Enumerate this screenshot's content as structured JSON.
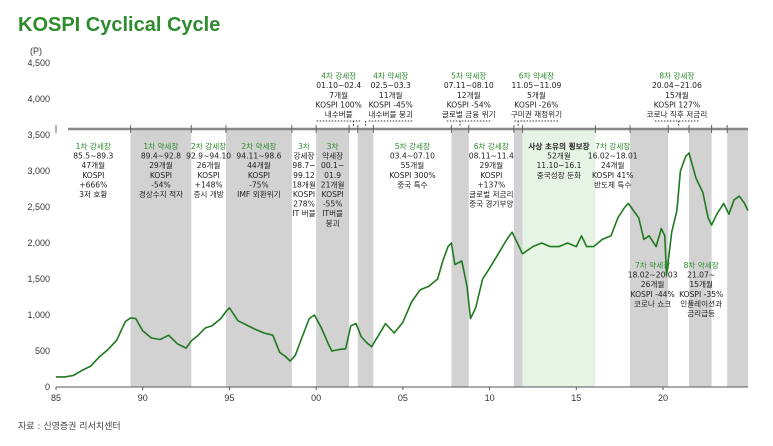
{
  "title": "KOSPI Cyclical Cycle",
  "source": "자료 : 신영증권 리서치센터",
  "chart_data": {
    "type": "line",
    "ylabel": "(P)",
    "ylim": [
      0,
      4500
    ],
    "xlim": [
      1985,
      2024.9
    ],
    "y_ticks": [
      "0",
      "500",
      "1,000",
      "1,500",
      "2,000",
      "2,500",
      "3,000",
      "3,500",
      "4,000",
      "4,500"
    ],
    "x_ticks": [
      "85",
      "90",
      "95",
      "00",
      "05",
      "10",
      "15",
      "20"
    ],
    "colors": {
      "line": "#1f7a1f",
      "shade": "#d2d2d2",
      "shade_highlight": "#e6f4e6",
      "cycle_bar": "#888888",
      "title": "#2e8b2e"
    },
    "series": [
      {
        "x": [
          1985.0,
          1985.5,
          1986.0,
          1986.5,
          1987.0,
          1987.5,
          1988.0,
          1988.5,
          1989.0,
          1989.3,
          1989.6,
          1990.0,
          1990.5,
          1991.0,
          1991.5,
          1992.0,
          1992.5,
          1992.8,
          1993.2,
          1993.6,
          1994.0,
          1994.5,
          1994.8,
          1995.0,
          1995.5,
          1996.0,
          1996.5,
          1997.0,
          1997.5,
          1997.9,
          1998.2,
          1998.5,
          1998.8,
          1999.2,
          1999.6,
          1999.9,
          2000.3,
          2000.7,
          2000.9,
          2001.3,
          2001.7,
          2002.0,
          2002.3,
          2002.6,
          2002.9,
          2003.2,
          2003.6,
          2004.0,
          2004.5,
          2005.0,
          2005.5,
          2006.0,
          2006.5,
          2007.0,
          2007.3,
          2007.6,
          2007.8,
          2008.0,
          2008.4,
          2008.7,
          2008.9,
          2009.2,
          2009.6,
          2010.0,
          2010.5,
          2011.0,
          2011.3,
          2011.6,
          2011.9,
          2012.5,
          2013.0,
          2013.5,
          2014.0,
          2014.5,
          2015.0,
          2015.3,
          2015.6,
          2016.0,
          2016.5,
          2017.0,
          2017.4,
          2017.8,
          2018.0,
          2018.3,
          2018.6,
          2018.9,
          2019.2,
          2019.6,
          2019.9,
          2020.1,
          2020.2,
          2020.5,
          2020.8,
          2021.0,
          2021.3,
          2021.5,
          2021.9,
          2022.3,
          2022.6,
          2022.8,
          2023.1,
          2023.5,
          2023.8,
          2024.1,
          2024.4,
          2024.7,
          2024.9
        ],
        "values": [
          140,
          140,
          160,
          230,
          290,
          420,
          520,
          650,
          910,
          960,
          950,
          780,
          680,
          660,
          720,
          600,
          540,
          640,
          720,
          820,
          850,
          950,
          1050,
          1100,
          920,
          860,
          800,
          750,
          720,
          480,
          430,
          360,
          440,
          700,
          950,
          1000,
          820,
          600,
          500,
          520,
          530,
          850,
          880,
          700,
          620,
          560,
          720,
          880,
          750,
          900,
          1180,
          1350,
          1400,
          1500,
          1750,
          1950,
          2000,
          1700,
          1750,
          1400,
          950,
          1100,
          1500,
          1650,
          1850,
          2050,
          2150,
          2000,
          1850,
          1950,
          2000,
          1950,
          1950,
          2000,
          1950,
          2100,
          1950,
          1950,
          2050,
          2100,
          2350,
          2500,
          2550,
          2450,
          2350,
          2050,
          2100,
          1950,
          2200,
          2100,
          1550,
          2150,
          2450,
          3000,
          3200,
          3250,
          2900,
          2700,
          2350,
          2250,
          2400,
          2550,
          2400,
          2600,
          2650,
          2550,
          2450
        ]
      }
    ],
    "cycles": [
      {
        "x0": 1985.0,
        "x1": 1989.3,
        "title": "1차 강세장",
        "lines": [
          "85.5~89.3",
          "47개월",
          "KOSPI",
          "+666%",
          "3저 호황"
        ],
        "shade": false,
        "title_style": "green",
        "pos": "inside"
      },
      {
        "x0": 1989.3,
        "x1": 1992.8,
        "title": "1차 약세장",
        "lines": [
          "89.4~92.8",
          "29개월",
          "KOSPI",
          "-54%",
          "경상수지 적자"
        ],
        "shade": true,
        "title_style": "green",
        "pos": "inside"
      },
      {
        "x0": 1992.8,
        "x1": 1994.8,
        "title": "2차 강세장",
        "lines": [
          "92.9~94.10",
          "26개월",
          "KOSPI",
          "+148%",
          "증시 개방"
        ],
        "shade": false,
        "title_style": "green",
        "pos": "inside"
      },
      {
        "x0": 1994.8,
        "x1": 1998.6,
        "title": "2차 약세장",
        "lines": [
          "94.11~98.6",
          "44개월",
          "KOSPI",
          "-75%",
          "IMF 외환위기"
        ],
        "shade": true,
        "title_style": "green",
        "pos": "inside"
      },
      {
        "x0": 1998.6,
        "x1": 2000.0,
        "title": "3차",
        "lines": [
          "강세장",
          "98.7~",
          "99.12",
          "18개월",
          "KOSPI",
          "278%",
          "IT 버블"
        ],
        "shade": false,
        "title_style": "green",
        "pos": "inside"
      },
      {
        "x0": 2000.0,
        "x1": 2001.9,
        "title": "3차",
        "lines": [
          "약세장",
          "00.1~",
          "01.9",
          "21개월",
          "KOSPI",
          "-55%",
          "IT버블",
          "붕괴"
        ],
        "shade": true,
        "title_style": "green",
        "pos": "inside"
      },
      {
        "x0": 2001.9,
        "x1": 2002.4,
        "title": "4차 강세장",
        "lines": [
          "01.10~02.4",
          "7개월",
          "KOSPI 100%",
          "내수버블"
        ],
        "shade": false,
        "title_style": "green",
        "pos": "above",
        "label_x": 2001.3
      },
      {
        "x0": 2002.4,
        "x1": 2003.3,
        "title": "4차 약세장",
        "lines": [
          "02.5~03.3",
          "11개월",
          "KOSPI -45%",
          "내수버블 붕괴"
        ],
        "shade": true,
        "title_style": "green",
        "pos": "above",
        "label_x": 2004.3
      },
      {
        "x0": 2003.3,
        "x1": 2007.8,
        "title": "5차 강세장",
        "lines": [
          "03.4~07.10",
          "55개월",
          "KOSPI 300%",
          "중국 특수"
        ],
        "shade": false,
        "title_style": "green",
        "pos": "inside"
      },
      {
        "x0": 2007.8,
        "x1": 2008.8,
        "title": "5차 약세장",
        "lines": [
          "07.11~08.10",
          "12개월",
          "KOSPI -54%",
          "글로벌 금융 위기"
        ],
        "shade": true,
        "title_style": "green",
        "pos": "above",
        "label_x": 2008.8
      },
      {
        "x0": 2008.8,
        "x1": 2011.4,
        "title": "6차 강세장",
        "lines": [
          "08.11~11.4",
          "29개월",
          "KOSPI",
          "+137%",
          "글로벌 저금리",
          "중국 경기부양"
        ],
        "shade": false,
        "title_style": "green",
        "pos": "inside"
      },
      {
        "x0": 2011.4,
        "x1": 2011.9,
        "title": "6차 약세장",
        "lines": [
          "11.05~11.09",
          "5개월",
          "KOSPI -26%",
          "구미권 재정위기"
        ],
        "shade": true,
        "title_style": "green",
        "pos": "above",
        "label_x": 2012.7
      },
      {
        "x0": 2011.9,
        "x1": 2016.1,
        "title": "사상 초유의 횡보장",
        "lines": [
          "52개월",
          "11.10~16.1",
          "중국성장 둔화"
        ],
        "shade": true,
        "highlight": true,
        "title_style": "dark",
        "pos": "inside"
      },
      {
        "x0": 2016.1,
        "x1": 2018.1,
        "title": "7차 강세장",
        "lines": [
          "16.02~18.01",
          "24개월",
          "KOSPI 41%",
          "반도체 특수"
        ],
        "shade": false,
        "title_style": "green",
        "pos": "inside"
      },
      {
        "x0": 2018.1,
        "x1": 2020.3,
        "title": "7차 약세장",
        "lines": [
          "18.02~20.03",
          "26개월",
          "KOSPI -44%",
          "코로나 쇼크"
        ],
        "shade": true,
        "title_style": "green",
        "pos": "lower",
        "label_x": 2019.4
      },
      {
        "x0": 2020.3,
        "x1": 2021.5,
        "title": "8차 강세장",
        "lines": [
          "20.04~21.06",
          "15개월",
          "KOSPI 127%",
          "코로나 직후 저금리"
        ],
        "shade": false,
        "title_style": "green",
        "pos": "above",
        "label_x": 2020.8
      },
      {
        "x0": 2021.5,
        "x1": 2022.8,
        "title": "8차 약세장",
        "lines": [
          "21.07~",
          "15개월",
          "KOSPI -35%",
          "인플레이션과",
          "금리급등"
        ],
        "shade": true,
        "title_style": "green",
        "pos": "lower",
        "label_x": 2022.2
      },
      {
        "x0": 2022.8,
        "x1": 2023.7,
        "title": "",
        "lines": [],
        "shade": false,
        "pos": "none"
      },
      {
        "x0": 2023.7,
        "x1": 2024.9,
        "title": "",
        "lines": [],
        "shade": true,
        "pos": "none"
      }
    ]
  }
}
